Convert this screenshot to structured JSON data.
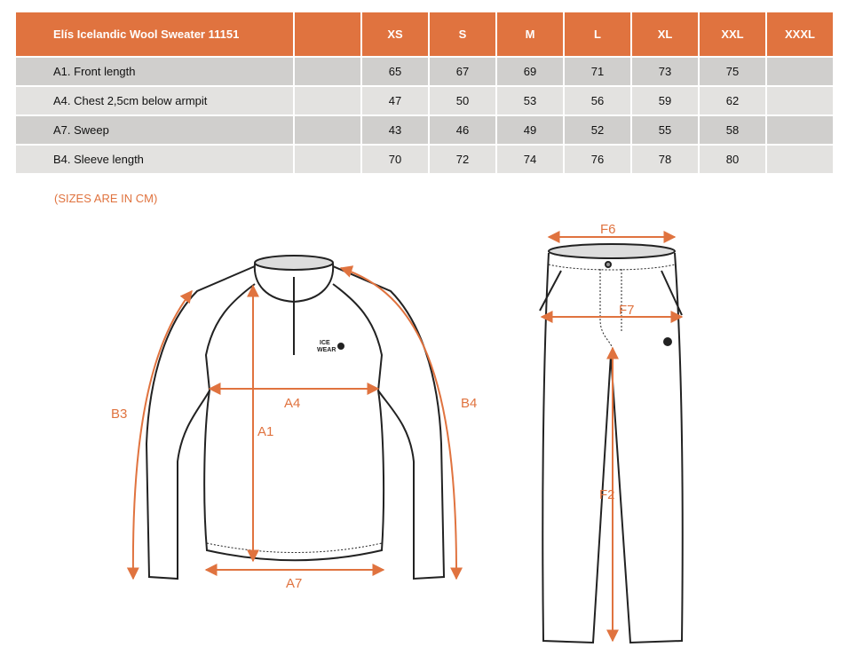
{
  "table": {
    "title": "Elís Icelandic Wool Sweater 11151",
    "sizes": [
      "XS",
      "S",
      "M",
      "L",
      "XL",
      "XXL",
      "XXXL"
    ],
    "rows": [
      {
        "label": "A1. Front length",
        "values": [
          "65",
          "67",
          "69",
          "71",
          "73",
          "75",
          ""
        ]
      },
      {
        "label": "A4. Chest 2,5cm below armpit",
        "values": [
          "47",
          "50",
          "53",
          "56",
          "59",
          "62",
          ""
        ]
      },
      {
        "label": "A7. Sweep",
        "values": [
          "43",
          "46",
          "49",
          "52",
          "55",
          "58",
          ""
        ]
      },
      {
        "label": "B4. Sleeve length",
        "values": [
          "70",
          "72",
          "74",
          "76",
          "78",
          "80",
          ""
        ]
      }
    ]
  },
  "note": "(SIZES ARE IN CM)",
  "diagram": {
    "sweater_labels": {
      "a1": "A1",
      "a4": "A4",
      "a7": "A7",
      "b3": "B3",
      "b4": "B4"
    },
    "pants_labels": {
      "f6": "F6",
      "f7": "F7",
      "f2": "F2"
    },
    "logo": "ICE WEAR",
    "accent_color": "#e0733f"
  }
}
